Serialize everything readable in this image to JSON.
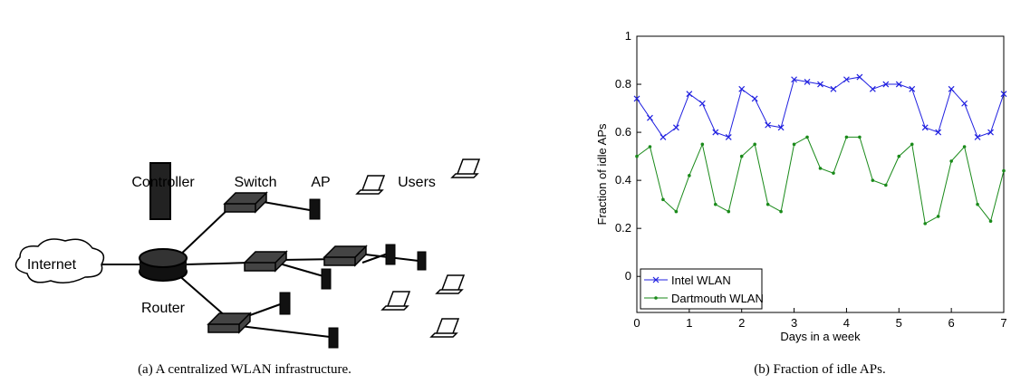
{
  "figure_a": {
    "labels": {
      "controller": "Controller",
      "switch": "Switch",
      "ap": "AP",
      "users": "Users",
      "internet": "Internet",
      "router": "Router"
    },
    "caption": "(a) A centralized WLAN infrastructure."
  },
  "chart_data": {
    "type": "line",
    "caption": "(b) Fraction of idle APs.",
    "xlabel": "Days in a week",
    "ylabel": "Fraction of idle APs",
    "x": [
      0,
      0.25,
      0.5,
      0.75,
      1,
      1.25,
      1.5,
      1.75,
      2,
      2.25,
      2.5,
      2.75,
      3,
      3.25,
      3.5,
      3.75,
      4,
      4.25,
      4.5,
      4.75,
      5,
      5.25,
      5.5,
      5.75,
      6,
      6.25,
      6.5,
      6.75,
      7
    ],
    "series": [
      {
        "name": "Intel WLAN",
        "color": "#2020e0",
        "marker": "x",
        "values": [
          0.74,
          0.66,
          0.58,
          0.62,
          0.76,
          0.72,
          0.6,
          0.58,
          0.78,
          0.74,
          0.63,
          0.62,
          0.82,
          0.81,
          0.8,
          0.78,
          0.82,
          0.83,
          0.78,
          0.8,
          0.8,
          0.78,
          0.62,
          0.6,
          0.78,
          0.72,
          0.58,
          0.6,
          0.76
        ]
      },
      {
        "name": "Dartmouth WLAN",
        "color": "#1a8a1a",
        "marker": "dot",
        "values": [
          0.5,
          0.54,
          0.32,
          0.27,
          0.42,
          0.55,
          0.3,
          0.27,
          0.5,
          0.55,
          0.3,
          0.27,
          0.55,
          0.58,
          0.45,
          0.43,
          0.58,
          0.58,
          0.4,
          0.38,
          0.5,
          0.55,
          0.22,
          0.25,
          0.48,
          0.54,
          0.3,
          0.23,
          0.44
        ]
      }
    ],
    "xlim": [
      0,
      7
    ],
    "xticks": [
      0,
      1,
      2,
      3,
      4,
      5,
      6,
      7
    ],
    "ylim": [
      -0.15,
      1
    ],
    "yticks": [
      0,
      0.2,
      0.4,
      0.6,
      0.8,
      1
    ],
    "legend": "lower left"
  }
}
